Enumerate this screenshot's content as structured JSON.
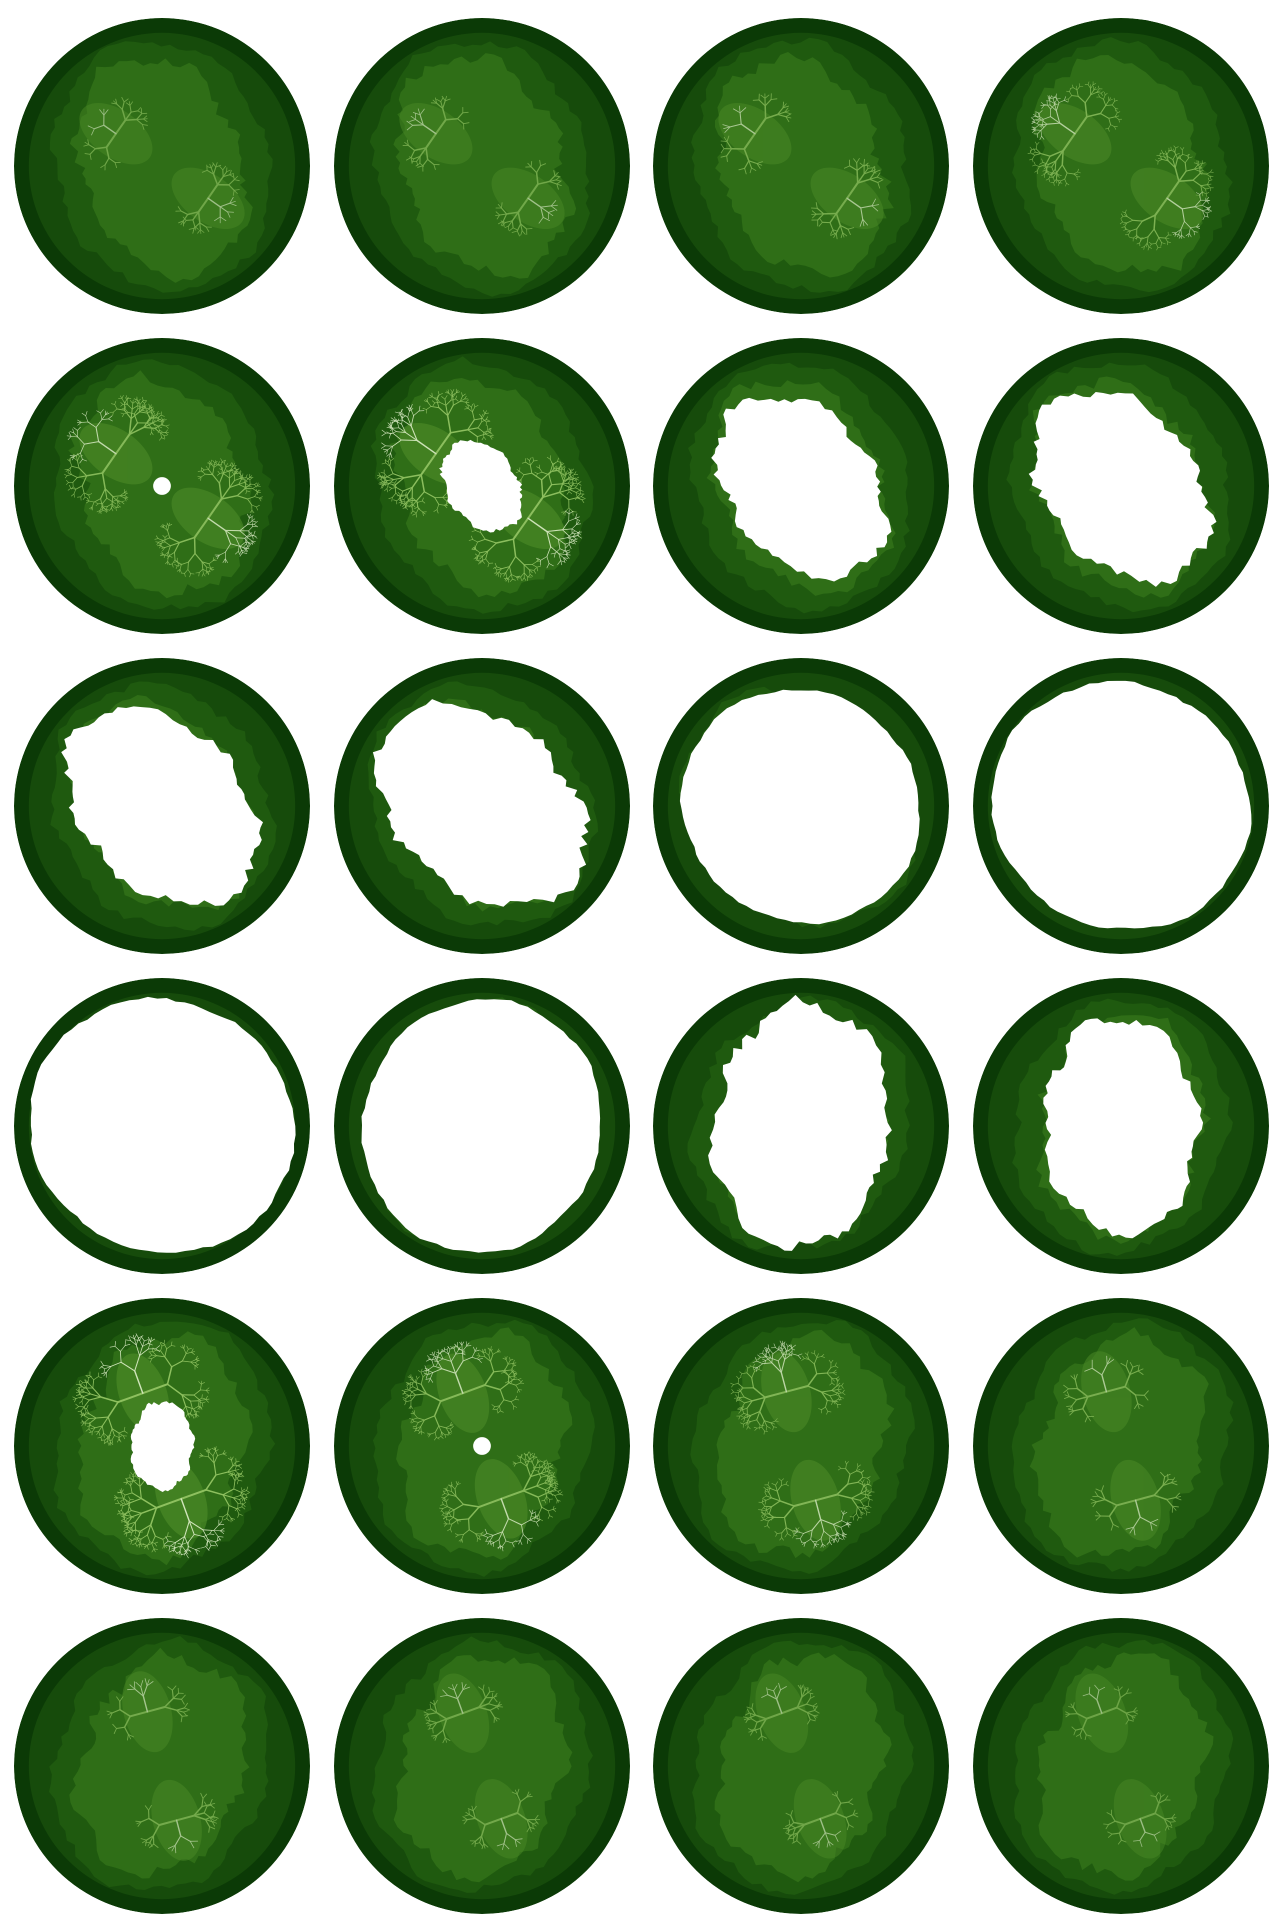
{
  "colors": {
    "background": "#ffffff",
    "outer_ring": "#0b3a06",
    "band_2": "#164b0b",
    "band_3": "#1f5a0f",
    "band_4": "#2f6e17",
    "band_5": "#4b8a27",
    "glow": "#9ccc6a",
    "highlight": "#e8f6d2",
    "interior": "#ffffff"
  },
  "gallery": {
    "rows": 6,
    "columns": 4,
    "frames": [
      {
        "index": 1,
        "stage": "sparse-filaments",
        "interior_fraction": 0.0,
        "glow_fraction": 0.1,
        "tilt_deg": 35
      },
      {
        "index": 2,
        "stage": "sparse-filaments",
        "interior_fraction": 0.0,
        "glow_fraction": 0.12,
        "tilt_deg": 35
      },
      {
        "index": 3,
        "stage": "sparse-filaments",
        "interior_fraction": 0.0,
        "glow_fraction": 0.16,
        "tilt_deg": 35
      },
      {
        "index": 4,
        "stage": "dendrites",
        "interior_fraction": 0.0,
        "glow_fraction": 0.22,
        "tilt_deg": 35
      },
      {
        "index": 5,
        "stage": "dendrites",
        "interior_fraction": 0.02,
        "glow_fraction": 0.3,
        "tilt_deg": 35
      },
      {
        "index": 6,
        "stage": "spirals",
        "interior_fraction": 0.1,
        "glow_fraction": 0.36,
        "tilt_deg": 35
      },
      {
        "index": 7,
        "stage": "filled-blob",
        "interior_fraction": 0.42,
        "glow_fraction": 0.0,
        "tilt_deg": 30
      },
      {
        "index": 8,
        "stage": "filled-blob",
        "interior_fraction": 0.46,
        "glow_fraction": 0.0,
        "tilt_deg": 30
      },
      {
        "index": 9,
        "stage": "filled-blob",
        "interior_fraction": 0.52,
        "glow_fraction": 0.0,
        "tilt_deg": 25
      },
      {
        "index": 10,
        "stage": "filled-blob",
        "interior_fraction": 0.58,
        "glow_fraction": 0.0,
        "tilt_deg": 20
      },
      {
        "index": 11,
        "stage": "near-circle",
        "interior_fraction": 0.66,
        "glow_fraction": 0.0,
        "tilt_deg": 10
      },
      {
        "index": 12,
        "stage": "near-circle",
        "interior_fraction": 0.76,
        "glow_fraction": 0.0,
        "tilt_deg": 0
      },
      {
        "index": 13,
        "stage": "near-circle",
        "interior_fraction": 0.8,
        "glow_fraction": 0.0,
        "tilt_deg": 0
      },
      {
        "index": 14,
        "stage": "near-circle",
        "interior_fraction": 0.72,
        "glow_fraction": 0.0,
        "tilt_deg": 80
      },
      {
        "index": 15,
        "stage": "filled-blob",
        "interior_fraction": 0.62,
        "glow_fraction": 0.0,
        "tilt_deg": 75
      },
      {
        "index": 16,
        "stage": "filled-blob",
        "interior_fraction": 0.48,
        "glow_fraction": 0.0,
        "tilt_deg": 65
      },
      {
        "index": 17,
        "stage": "spirals",
        "interior_fraction": 0.08,
        "glow_fraction": 0.38,
        "tilt_deg": 70
      },
      {
        "index": 18,
        "stage": "dendrites",
        "interior_fraction": 0.02,
        "glow_fraction": 0.3,
        "tilt_deg": 70
      },
      {
        "index": 19,
        "stage": "dendrites",
        "interior_fraction": 0.0,
        "glow_fraction": 0.26,
        "tilt_deg": 75
      },
      {
        "index": 20,
        "stage": "sparse-filaments",
        "interior_fraction": 0.0,
        "glow_fraction": 0.18,
        "tilt_deg": 75
      },
      {
        "index": 21,
        "stage": "sparse-filaments",
        "interior_fraction": 0.0,
        "glow_fraction": 0.14,
        "tilt_deg": 75
      },
      {
        "index": 22,
        "stage": "sparse-filaments",
        "interior_fraction": 0.0,
        "glow_fraction": 0.12,
        "tilt_deg": 70
      },
      {
        "index": 23,
        "stage": "sparse-filaments",
        "interior_fraction": 0.0,
        "glow_fraction": 0.1,
        "tilt_deg": 70
      },
      {
        "index": 24,
        "stage": "sparse-filaments",
        "interior_fraction": 0.0,
        "glow_fraction": 0.08,
        "tilt_deg": 70
      }
    ]
  }
}
